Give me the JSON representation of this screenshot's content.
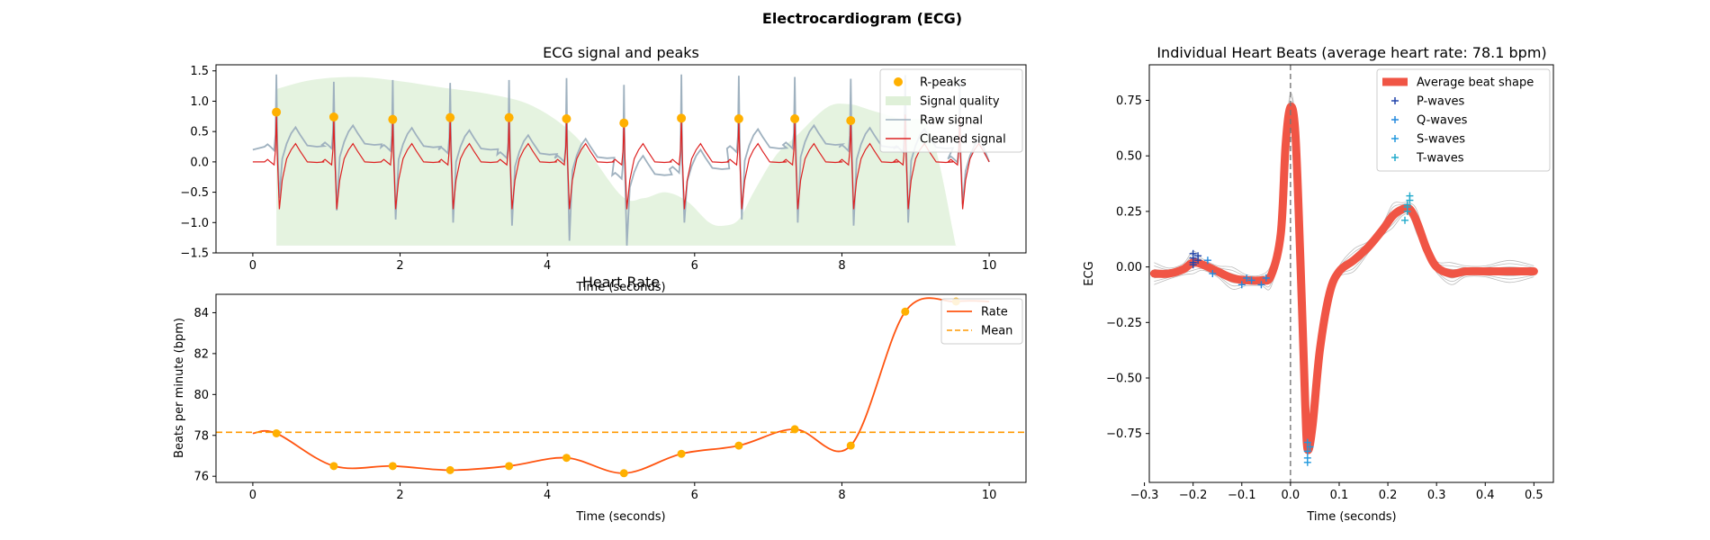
{
  "figure_title": "Electrocardiogram (ECG)",
  "colors": {
    "rpeak": "#FFB000",
    "quality_fill": "#DFF0D8",
    "raw": "#9FB1BF",
    "cleaned": "#DD2222",
    "rate": "#FF5511",
    "mean": "#FF9900",
    "avg_beat": "#F05545",
    "individual_beats": "#BBBBBB",
    "p_wave": "#2244AA",
    "q_wave": "#2288DD",
    "s_wave": "#2299DD",
    "t_wave": "#22AACC",
    "zero_line": "#777777"
  },
  "chart_data": [
    {
      "type": "line",
      "title": "ECG signal and peaks",
      "xlabel": "Time (seconds)",
      "ylabel": "",
      "xlim": [
        -0.5,
        10.5
      ],
      "ylim": [
        -1.5,
        1.6
      ],
      "xticks": [
        0,
        2,
        4,
        6,
        8,
        10
      ],
      "yticks": [
        -1.5,
        -1.0,
        -0.5,
        0.0,
        0.5,
        1.0,
        1.5
      ],
      "xtick_labels": [
        "0",
        "2",
        "4",
        "6",
        "8",
        "10"
      ],
      "ytick_labels": [
        "−1.5",
        "−1.0",
        "−0.5",
        "0.0",
        "0.5",
        "1.0",
        "1.5"
      ],
      "legend": [
        "R-peaks",
        "Signal quality",
        "Raw signal",
        "Cleaned signal"
      ],
      "legend_position": "top-right",
      "r_peaks": {
        "name": "R-peaks",
        "x": [
          0.32,
          1.1,
          1.9,
          2.68,
          3.48,
          4.26,
          5.04,
          5.82,
          6.6,
          7.36,
          8.12
        ],
        "y": [
          0.82,
          0.74,
          0.7,
          0.73,
          0.73,
          0.71,
          0.64,
          0.72,
          0.71,
          0.71,
          0.68
        ]
      },
      "signal_quality": {
        "name": "Signal quality",
        "x": [
          0.32,
          0.8,
          1.4,
          2.0,
          2.6,
          3.2,
          3.8,
          4.4,
          5.0,
          5.3,
          5.6,
          5.9,
          6.2,
          6.4,
          6.6,
          6.8,
          7.1,
          7.4,
          7.8,
          8.1,
          8.4,
          8.8,
          9.2,
          9.55
        ],
        "y": [
          1.2,
          1.35,
          1.4,
          1.33,
          1.22,
          1.12,
          0.92,
          0.4,
          -0.55,
          -0.6,
          -0.5,
          -0.65,
          -1.0,
          -1.05,
          -0.95,
          -0.5,
          0.1,
          0.45,
          0.9,
          0.95,
          0.85,
          0.7,
          0.5,
          -1.4
        ],
        "baseline": -1.38
      },
      "beats": [
        0.32,
        1.1,
        1.9,
        2.68,
        3.48,
        4.26,
        5.04,
        5.82,
        6.6,
        7.36,
        8.12,
        8.86,
        9.6
      ],
      "r_amplitudes": [
        0.82,
        0.74,
        0.7,
        0.73,
        0.73,
        0.71,
        0.64,
        0.72,
        0.71,
        0.71,
        0.68,
        0.78,
        0.75
      ],
      "raw_offsets": [
        0.25,
        0.28,
        0.24,
        0.2,
        0.12,
        0.06,
        -0.22,
        -0.12,
        0.22,
        0.28,
        0.24,
        0.22,
        0.05
      ],
      "raw_peak_values": [
        1.44,
        1.32,
        1.35,
        1.3,
        1.35,
        1.38,
        1.27,
        1.44,
        1.42,
        1.4,
        1.37,
        1.43,
        1.35
      ],
      "raw_trough_values": [
        -0.6,
        -0.8,
        -0.95,
        -1.0,
        -1.05,
        -1.3,
        -1.38,
        -1.0,
        -0.95,
        -1.0,
        -1.05,
        -1.0,
        -0.7
      ]
    },
    {
      "type": "line",
      "title": "Heart Rate",
      "xlabel": "Time (seconds)",
      "ylabel": "Beats per minute (bpm)",
      "xlim": [
        -0.5,
        10.5
      ],
      "ylim": [
        75.7,
        84.9
      ],
      "xticks": [
        0,
        2,
        4,
        6,
        8,
        10
      ],
      "yticks": [
        76,
        78,
        80,
        82,
        84
      ],
      "xtick_labels": [
        "0",
        "2",
        "4",
        "6",
        "8",
        "10"
      ],
      "ytick_labels": [
        "76",
        "78",
        "80",
        "82",
        "84"
      ],
      "legend": [
        "Rate",
        "Mean"
      ],
      "legend_position": "top-right",
      "series": [
        {
          "name": "Rate",
          "x": [
            0,
            0.32,
            1.1,
            1.9,
            2.68,
            3.48,
            4.26,
            5.04,
            5.82,
            6.6,
            7.36,
            8.12,
            8.86,
            9.55,
            10.0
          ],
          "y": [
            78.1,
            78.1,
            76.5,
            76.5,
            76.3,
            76.5,
            76.9,
            76.15,
            77.1,
            77.5,
            78.3,
            77.5,
            84.05,
            84.55,
            84.55
          ]
        }
      ],
      "rate_points": {
        "x": [
          0.32,
          1.1,
          1.9,
          2.68,
          3.48,
          4.26,
          5.04,
          5.82,
          6.6,
          7.36,
          8.12,
          8.86,
          9.55
        ],
        "y": [
          78.1,
          76.5,
          76.5,
          76.3,
          76.5,
          76.9,
          76.15,
          77.1,
          77.5,
          78.3,
          77.5,
          84.05,
          84.55
        ]
      },
      "mean": 78.15
    },
    {
      "type": "line",
      "title": "Individual Heart Beats (average heart rate: 78.1 bpm)",
      "xlabel": "Time (seconds)",
      "ylabel": "ECG",
      "xlim": [
        -0.29,
        0.54
      ],
      "ylim": [
        -0.97,
        0.91
      ],
      "xticks": [
        -0.3,
        -0.2,
        -0.1,
        0.0,
        0.1,
        0.2,
        0.3,
        0.4,
        0.5
      ],
      "yticks": [
        -0.75,
        -0.5,
        -0.25,
        0.0,
        0.25,
        0.5,
        0.75
      ],
      "xtick_labels": [
        "−0.3",
        "−0.2",
        "−0.1",
        "0.0",
        "0.1",
        "0.2",
        "0.3",
        "0.4",
        "0.5"
      ],
      "ytick_labels": [
        "−0.75",
        "−0.50",
        "−0.25",
        "0.00",
        "0.25",
        "0.50",
        "0.75"
      ],
      "legend": [
        "Average beat shape",
        "P-waves",
        "Q-waves",
        "S-waves",
        "T-waves"
      ],
      "legend_position": "top-right",
      "average_beat": {
        "x": [
          -0.28,
          -0.25,
          -0.22,
          -0.2,
          -0.18,
          -0.15,
          -0.12,
          -0.09,
          -0.06,
          -0.04,
          -0.02,
          -0.01,
          0.0,
          0.01,
          0.02,
          0.03,
          0.035,
          0.045,
          0.06,
          0.08,
          0.1,
          0.13,
          0.16,
          0.19,
          0.21,
          0.23,
          0.245,
          0.26,
          0.28,
          0.3,
          0.33,
          0.36,
          0.4,
          0.45,
          0.5
        ],
        "y": [
          -0.03,
          -0.03,
          -0.01,
          0.02,
          0.01,
          -0.02,
          -0.05,
          -0.06,
          -0.06,
          -0.04,
          0.15,
          0.55,
          0.72,
          0.6,
          0.05,
          -0.6,
          -0.82,
          -0.72,
          -0.38,
          -0.12,
          -0.02,
          0.03,
          0.09,
          0.17,
          0.23,
          0.26,
          0.26,
          0.2,
          0.08,
          0.0,
          -0.03,
          -0.02,
          -0.02,
          -0.02,
          -0.02
        ]
      },
      "individual_offsets": [
        0.02,
        -0.02,
        0.035,
        -0.035,
        0.01,
        -0.01,
        0.05,
        -0.05
      ],
      "p_waves": {
        "name": "P-waves",
        "x": [
          -0.2,
          -0.2,
          -0.2,
          -0.2,
          -0.19,
          -0.19
        ],
        "y": [
          0.02,
          0.04,
          0.06,
          0.01,
          0.03,
          0.05
        ]
      },
      "q_waves": {
        "name": "Q-waves",
        "x": [
          -0.17,
          -0.16,
          -0.1,
          -0.09,
          -0.08,
          -0.06,
          -0.05
        ],
        "y": [
          0.03,
          -0.03,
          -0.08,
          -0.05,
          -0.06,
          -0.08,
          -0.05
        ]
      },
      "s_waves": {
        "name": "S-waves",
        "x": [
          0.035,
          0.035,
          0.035,
          0.035,
          0.04
        ],
        "y": [
          -0.79,
          -0.83,
          -0.86,
          -0.88,
          -0.81
        ]
      },
      "t_waves": {
        "name": "T-waves",
        "x": [
          0.235,
          0.24,
          0.24,
          0.245,
          0.245,
          0.24
        ],
        "y": [
          0.21,
          0.25,
          0.28,
          0.3,
          0.32,
          0.27
        ]
      }
    }
  ]
}
